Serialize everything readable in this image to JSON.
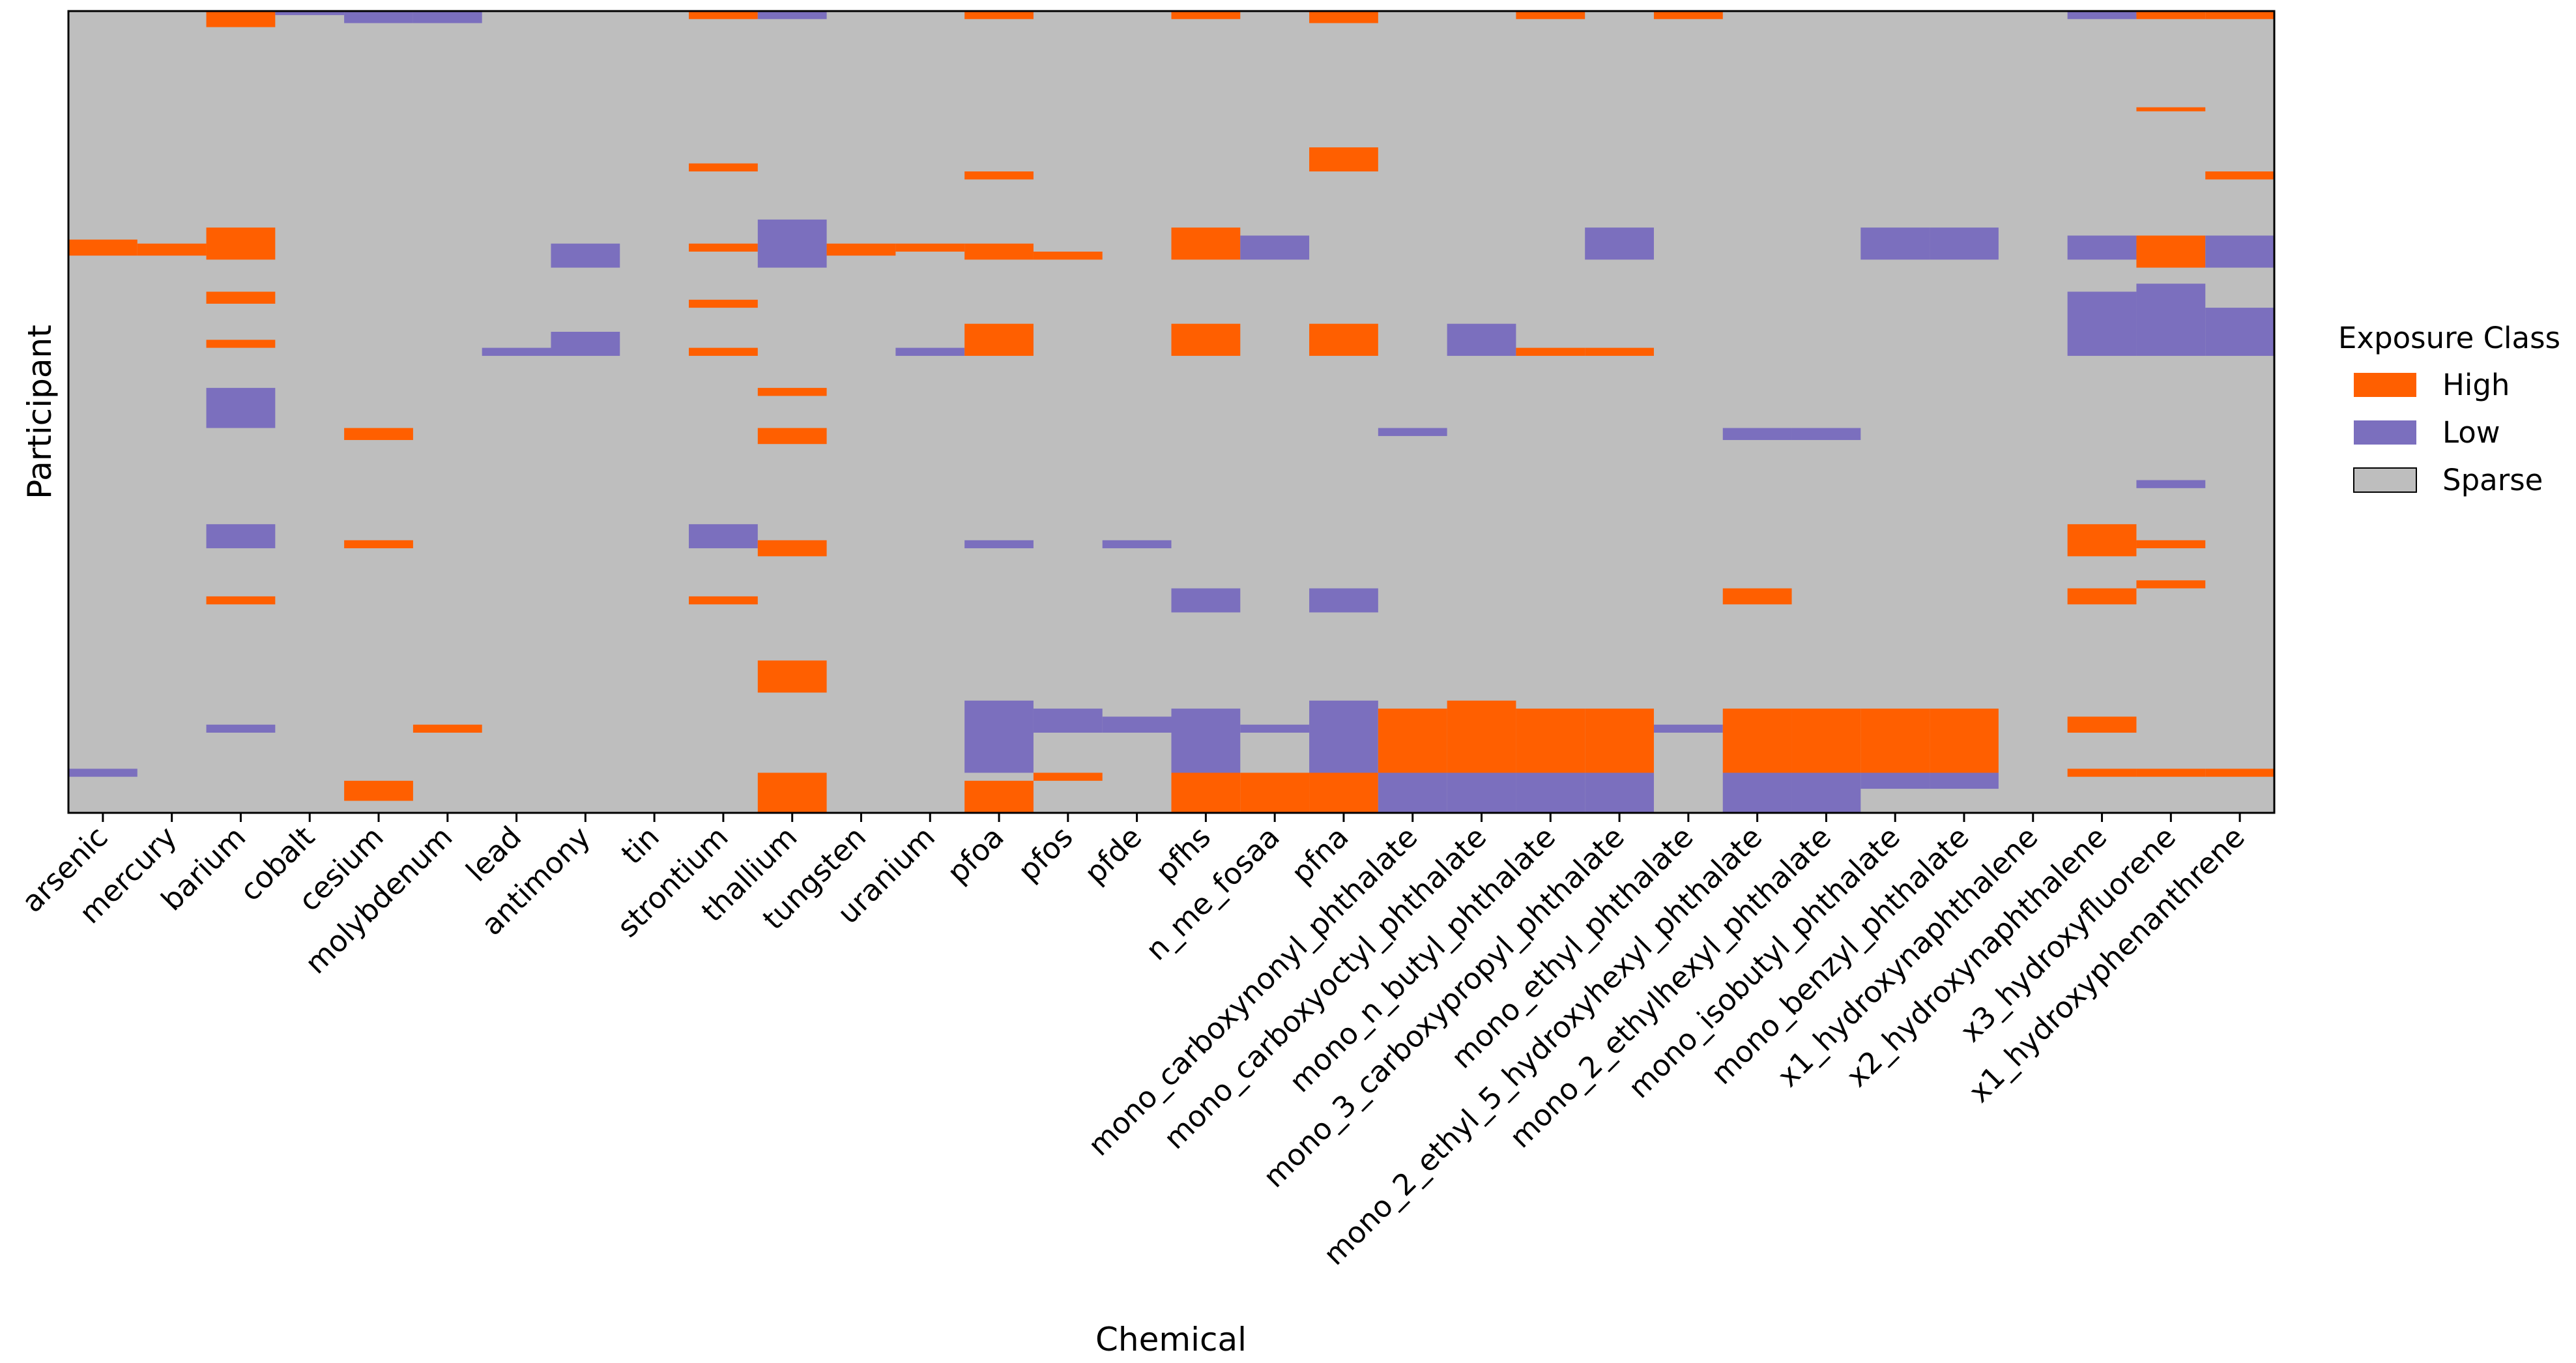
{
  "chart_data": {
    "type": "heatmap",
    "title": "",
    "xlabel": "Chemical",
    "ylabel": "Participant",
    "categories": [
      "arsenic",
      "mercury",
      "barium",
      "cobalt",
      "cesium",
      "molybdenum",
      "lead",
      "antimony",
      "tin",
      "strontium",
      "thallium",
      "tungsten",
      "uranium",
      "pfoa",
      "pfos",
      "pfde",
      "pfhs",
      "n_me_fosaa",
      "pfna",
      "mono_carboxynonyl_phthalate",
      "mono_carboxyoctyl_phthalate",
      "mono_n_butyl_phthalate",
      "mono_3_carboxypropyl_phthalate",
      "mono_ethyl_phthalate",
      "mono_2_ethyl_5_hydroxyhexyl_phthalate",
      "mono_2_ethylhexyl_phthalate",
      "mono_isobutyl_phthalate",
      "mono_benzyl_phthalate",
      "x1_hydroxynaphthalene",
      "x2_hydroxynaphthalene",
      "x3_hydroxyfluorene",
      "x1_hydroxyphenanthrene"
    ],
    "exposure_classes": [
      "High",
      "Low",
      "Sparse"
    ],
    "colors": {
      "High": "#ff5f00",
      "Low": "#7b6fbe",
      "Sparse": "#bebebe"
    },
    "participant_range": [
      0,
      1
    ],
    "legend": {
      "title": "Exposure Class",
      "position": "right",
      "entries": [
        "High",
        "Low",
        "Sparse"
      ]
    },
    "bands": [
      {
        "column": "arsenic",
        "class": "High",
        "y0": 0.285,
        "y1": 0.305
      },
      {
        "column": "arsenic",
        "class": "Low",
        "y0": 0.945,
        "y1": 0.955
      },
      {
        "column": "mercury",
        "class": "High",
        "y0": 0.29,
        "y1": 0.305
      },
      {
        "column": "barium",
        "class": "High",
        "y0": 0.0,
        "y1": 0.02
      },
      {
        "column": "barium",
        "class": "High",
        "y0": 0.27,
        "y1": 0.31
      },
      {
        "column": "barium",
        "class": "High",
        "y0": 0.35,
        "y1": 0.365
      },
      {
        "column": "barium",
        "class": "High",
        "y0": 0.41,
        "y1": 0.42
      },
      {
        "column": "barium",
        "class": "Low",
        "y0": 0.47,
        "y1": 0.52
      },
      {
        "column": "barium",
        "class": "Low",
        "y0": 0.64,
        "y1": 0.67
      },
      {
        "column": "barium",
        "class": "High",
        "y0": 0.73,
        "y1": 0.74
      },
      {
        "column": "barium",
        "class": "Low",
        "y0": 0.89,
        "y1": 0.9
      },
      {
        "column": "cobalt",
        "class": "Low",
        "y0": 0.0,
        "y1": 0.005
      },
      {
        "column": "cesium",
        "class": "Low",
        "y0": 0.0,
        "y1": 0.015
      },
      {
        "column": "cesium",
        "class": "High",
        "y0": 0.52,
        "y1": 0.535
      },
      {
        "column": "cesium",
        "class": "High",
        "y0": 0.66,
        "y1": 0.67
      },
      {
        "column": "cesium",
        "class": "High",
        "y0": 0.96,
        "y1": 0.985
      },
      {
        "column": "molybdenum",
        "class": "Low",
        "y0": 0.0,
        "y1": 0.015
      },
      {
        "column": "molybdenum",
        "class": "High",
        "y0": 0.89,
        "y1": 0.9
      },
      {
        "column": "lead",
        "class": "Low",
        "y0": 0.42,
        "y1": 0.43
      },
      {
        "column": "antimony",
        "class": "Low",
        "y0": 0.29,
        "y1": 0.32
      },
      {
        "column": "antimony",
        "class": "Low",
        "y0": 0.4,
        "y1": 0.43
      },
      {
        "column": "strontium",
        "class": "High",
        "y0": 0.0,
        "y1": 0.01
      },
      {
        "column": "strontium",
        "class": "High",
        "y0": 0.19,
        "y1": 0.2
      },
      {
        "column": "strontium",
        "class": "High",
        "y0": 0.29,
        "y1": 0.3
      },
      {
        "column": "strontium",
        "class": "High",
        "y0": 0.36,
        "y1": 0.37
      },
      {
        "column": "strontium",
        "class": "High",
        "y0": 0.42,
        "y1": 0.43
      },
      {
        "column": "strontium",
        "class": "Low",
        "y0": 0.64,
        "y1": 0.67
      },
      {
        "column": "strontium",
        "class": "High",
        "y0": 0.73,
        "y1": 0.74
      },
      {
        "column": "thallium",
        "class": "Low",
        "y0": 0.0,
        "y1": 0.01
      },
      {
        "column": "thallium",
        "class": "Low",
        "y0": 0.26,
        "y1": 0.32
      },
      {
        "column": "thallium",
        "class": "High",
        "y0": 0.47,
        "y1": 0.48
      },
      {
        "column": "thallium",
        "class": "High",
        "y0": 0.52,
        "y1": 0.54
      },
      {
        "column": "thallium",
        "class": "High",
        "y0": 0.66,
        "y1": 0.68
      },
      {
        "column": "thallium",
        "class": "High",
        "y0": 0.81,
        "y1": 0.85
      },
      {
        "column": "thallium",
        "class": "High",
        "y0": 0.95,
        "y1": 1.0
      },
      {
        "column": "tungsten",
        "class": "High",
        "y0": 0.29,
        "y1": 0.305
      },
      {
        "column": "uranium",
        "class": "High",
        "y0": 0.29,
        "y1": 0.3
      },
      {
        "column": "uranium",
        "class": "Low",
        "y0": 0.42,
        "y1": 0.43
      },
      {
        "column": "pfoa",
        "class": "High",
        "y0": 0.0,
        "y1": 0.01
      },
      {
        "column": "pfoa",
        "class": "High",
        "y0": 0.2,
        "y1": 0.21
      },
      {
        "column": "pfoa",
        "class": "High",
        "y0": 0.29,
        "y1": 0.31
      },
      {
        "column": "pfoa",
        "class": "High",
        "y0": 0.39,
        "y1": 0.43
      },
      {
        "column": "pfoa",
        "class": "Low",
        "y0": 0.66,
        "y1": 0.67
      },
      {
        "column": "pfoa",
        "class": "Low",
        "y0": 0.86,
        "y1": 0.95
      },
      {
        "column": "pfoa",
        "class": "High",
        "y0": 0.96,
        "y1": 1.0
      },
      {
        "column": "pfos",
        "class": "High",
        "y0": 0.3,
        "y1": 0.31
      },
      {
        "column": "pfos",
        "class": "Low",
        "y0": 0.87,
        "y1": 0.9
      },
      {
        "column": "pfos",
        "class": "High",
        "y0": 0.95,
        "y1": 0.96
      },
      {
        "column": "pfde",
        "class": "Low",
        "y0": 0.66,
        "y1": 0.67
      },
      {
        "column": "pfde",
        "class": "Low",
        "y0": 0.88,
        "y1": 0.9
      },
      {
        "column": "pfhs",
        "class": "High",
        "y0": 0.0,
        "y1": 0.01
      },
      {
        "column": "pfhs",
        "class": "High",
        "y0": 0.27,
        "y1": 0.31
      },
      {
        "column": "pfhs",
        "class": "High",
        "y0": 0.39,
        "y1": 0.43
      },
      {
        "column": "pfhs",
        "class": "Low",
        "y0": 0.72,
        "y1": 0.75
      },
      {
        "column": "pfhs",
        "class": "Low",
        "y0": 0.87,
        "y1": 0.95
      },
      {
        "column": "pfhs",
        "class": "High",
        "y0": 0.95,
        "y1": 1.0
      },
      {
        "column": "n_me_fosaa",
        "class": "Low",
        "y0": 0.28,
        "y1": 0.31
      },
      {
        "column": "n_me_fosaa",
        "class": "Low",
        "y0": 0.89,
        "y1": 0.9
      },
      {
        "column": "n_me_fosaa",
        "class": "High",
        "y0": 0.95,
        "y1": 1.0
      },
      {
        "column": "pfna",
        "class": "High",
        "y0": 0.0,
        "y1": 0.015
      },
      {
        "column": "pfna",
        "class": "High",
        "y0": 0.17,
        "y1": 0.2
      },
      {
        "column": "pfna",
        "class": "High",
        "y0": 0.39,
        "y1": 0.43
      },
      {
        "column": "pfna",
        "class": "Low",
        "y0": 0.72,
        "y1": 0.75
      },
      {
        "column": "pfna",
        "class": "Low",
        "y0": 0.86,
        "y1": 0.95
      },
      {
        "column": "pfna",
        "class": "High",
        "y0": 0.95,
        "y1": 1.0
      },
      {
        "column": "mono_carboxynonyl_phthalate",
        "class": "Low",
        "y0": 0.52,
        "y1": 0.53
      },
      {
        "column": "mono_carboxynonyl_phthalate",
        "class": "High",
        "y0": 0.87,
        "y1": 0.9
      },
      {
        "column": "mono_carboxynonyl_phthalate",
        "class": "High",
        "y0": 0.9,
        "y1": 0.95
      },
      {
        "column": "mono_carboxynonyl_phthalate",
        "class": "Low",
        "y0": 0.95,
        "y1": 1.0
      },
      {
        "column": "mono_carboxyoctyl_phthalate",
        "class": "Low",
        "y0": 0.39,
        "y1": 0.43
      },
      {
        "column": "mono_carboxyoctyl_phthalate",
        "class": "High",
        "y0": 0.86,
        "y1": 0.9
      },
      {
        "column": "mono_carboxyoctyl_phthalate",
        "class": "High",
        "y0": 0.9,
        "y1": 0.95
      },
      {
        "column": "mono_carboxyoctyl_phthalate",
        "class": "Low",
        "y0": 0.95,
        "y1": 1.0
      },
      {
        "column": "mono_n_butyl_phthalate",
        "class": "High",
        "y0": 0.0,
        "y1": 0.01
      },
      {
        "column": "mono_n_butyl_phthalate",
        "class": "High",
        "y0": 0.42,
        "y1": 0.43
      },
      {
        "column": "mono_n_butyl_phthalate",
        "class": "High",
        "y0": 0.87,
        "y1": 0.9
      },
      {
        "column": "mono_n_butyl_phthalate",
        "class": "High",
        "y0": 0.9,
        "y1": 0.95
      },
      {
        "column": "mono_n_butyl_phthalate",
        "class": "Low",
        "y0": 0.95,
        "y1": 1.0
      },
      {
        "column": "mono_3_carboxypropyl_phthalate",
        "class": "Low",
        "y0": 0.27,
        "y1": 0.31
      },
      {
        "column": "mono_3_carboxypropyl_phthalate",
        "class": "High",
        "y0": 0.42,
        "y1": 0.43
      },
      {
        "column": "mono_3_carboxypropyl_phthalate",
        "class": "High",
        "y0": 0.87,
        "y1": 0.9
      },
      {
        "column": "mono_3_carboxypropyl_phthalate",
        "class": "High",
        "y0": 0.9,
        "y1": 0.95
      },
      {
        "column": "mono_3_carboxypropyl_phthalate",
        "class": "Low",
        "y0": 0.95,
        "y1": 1.0
      },
      {
        "column": "mono_ethyl_phthalate",
        "class": "High",
        "y0": 0.0,
        "y1": 0.01
      },
      {
        "column": "mono_ethyl_phthalate",
        "class": "Low",
        "y0": 0.89,
        "y1": 0.9
      },
      {
        "column": "mono_2_ethyl_5_hydroxyhexyl_phthalate",
        "class": "Low",
        "y0": 0.52,
        "y1": 0.535
      },
      {
        "column": "mono_2_ethyl_5_hydroxyhexyl_phthalate",
        "class": "High",
        "y0": 0.72,
        "y1": 0.74
      },
      {
        "column": "mono_2_ethyl_5_hydroxyhexyl_phthalate",
        "class": "High",
        "y0": 0.87,
        "y1": 0.9
      },
      {
        "column": "mono_2_ethyl_5_hydroxyhexyl_phthalate",
        "class": "High",
        "y0": 0.9,
        "y1": 0.95
      },
      {
        "column": "mono_2_ethyl_5_hydroxyhexyl_phthalate",
        "class": "Low",
        "y0": 0.95,
        "y1": 1.0
      },
      {
        "column": "mono_2_ethylhexyl_phthalate",
        "class": "Low",
        "y0": 0.52,
        "y1": 0.535
      },
      {
        "column": "mono_2_ethylhexyl_phthalate",
        "class": "High",
        "y0": 0.87,
        "y1": 0.9
      },
      {
        "column": "mono_2_ethylhexyl_phthalate",
        "class": "High",
        "y0": 0.9,
        "y1": 0.95
      },
      {
        "column": "mono_2_ethylhexyl_phthalate",
        "class": "Low",
        "y0": 0.95,
        "y1": 1.0
      },
      {
        "column": "mono_isobutyl_phthalate",
        "class": "Low",
        "y0": 0.27,
        "y1": 0.31
      },
      {
        "column": "mono_isobutyl_phthalate",
        "class": "High",
        "y0": 0.87,
        "y1": 0.9
      },
      {
        "column": "mono_isobutyl_phthalate",
        "class": "High",
        "y0": 0.9,
        "y1": 0.95
      },
      {
        "column": "mono_isobutyl_phthalate",
        "class": "Low",
        "y0": 0.95,
        "y1": 0.97
      },
      {
        "column": "mono_benzyl_phthalate",
        "class": "Low",
        "y0": 0.27,
        "y1": 0.31
      },
      {
        "column": "mono_benzyl_phthalate",
        "class": "High",
        "y0": 0.87,
        "y1": 0.9
      },
      {
        "column": "mono_benzyl_phthalate",
        "class": "High",
        "y0": 0.9,
        "y1": 0.95
      },
      {
        "column": "mono_benzyl_phthalate",
        "class": "Low",
        "y0": 0.95,
        "y1": 0.97
      },
      {
        "column": "x2_hydroxynaphthalene",
        "class": "Low",
        "y0": 0.0,
        "y1": 0.01
      },
      {
        "column": "x2_hydroxynaphthalene",
        "class": "Low",
        "y0": 0.28,
        "y1": 0.31
      },
      {
        "column": "x2_hydroxynaphthalene",
        "class": "Low",
        "y0": 0.35,
        "y1": 0.43
      },
      {
        "column": "x2_hydroxynaphthalene",
        "class": "High",
        "y0": 0.64,
        "y1": 0.68
      },
      {
        "column": "x2_hydroxynaphthalene",
        "class": "High",
        "y0": 0.72,
        "y1": 0.74
      },
      {
        "column": "x2_hydroxynaphthalene",
        "class": "High",
        "y0": 0.88,
        "y1": 0.9
      },
      {
        "column": "x2_hydroxynaphthalene",
        "class": "High",
        "y0": 0.945,
        "y1": 0.955
      },
      {
        "column": "x3_hydroxyfluorene",
        "class": "High",
        "y0": 0.0,
        "y1": 0.01
      },
      {
        "column": "x3_hydroxyfluorene",
        "class": "High",
        "y0": 0.12,
        "y1": 0.125
      },
      {
        "column": "x3_hydroxyfluorene",
        "class": "High",
        "y0": 0.28,
        "y1": 0.32
      },
      {
        "column": "x3_hydroxyfluorene",
        "class": "Low",
        "y0": 0.34,
        "y1": 0.43
      },
      {
        "column": "x3_hydroxyfluorene",
        "class": "Low",
        "y0": 0.585,
        "y1": 0.595
      },
      {
        "column": "x3_hydroxyfluorene",
        "class": "High",
        "y0": 0.66,
        "y1": 0.67
      },
      {
        "column": "x3_hydroxyfluorene",
        "class": "High",
        "y0": 0.71,
        "y1": 0.72
      },
      {
        "column": "x3_hydroxyfluorene",
        "class": "High",
        "y0": 0.945,
        "y1": 0.955
      },
      {
        "column": "x1_hydroxyphenanthrene",
        "class": "High",
        "y0": 0.0,
        "y1": 0.01
      },
      {
        "column": "x1_hydroxyphenanthrene",
        "class": "High",
        "y0": 0.2,
        "y1": 0.21
      },
      {
        "column": "x1_hydroxyphenanthrene",
        "class": "Low",
        "y0": 0.28,
        "y1": 0.32
      },
      {
        "column": "x1_hydroxyphenanthrene",
        "class": "Low",
        "y0": 0.37,
        "y1": 0.43
      },
      {
        "column": "x1_hydroxyphenanthrene",
        "class": "High",
        "y0": 0.945,
        "y1": 0.955
      }
    ]
  }
}
